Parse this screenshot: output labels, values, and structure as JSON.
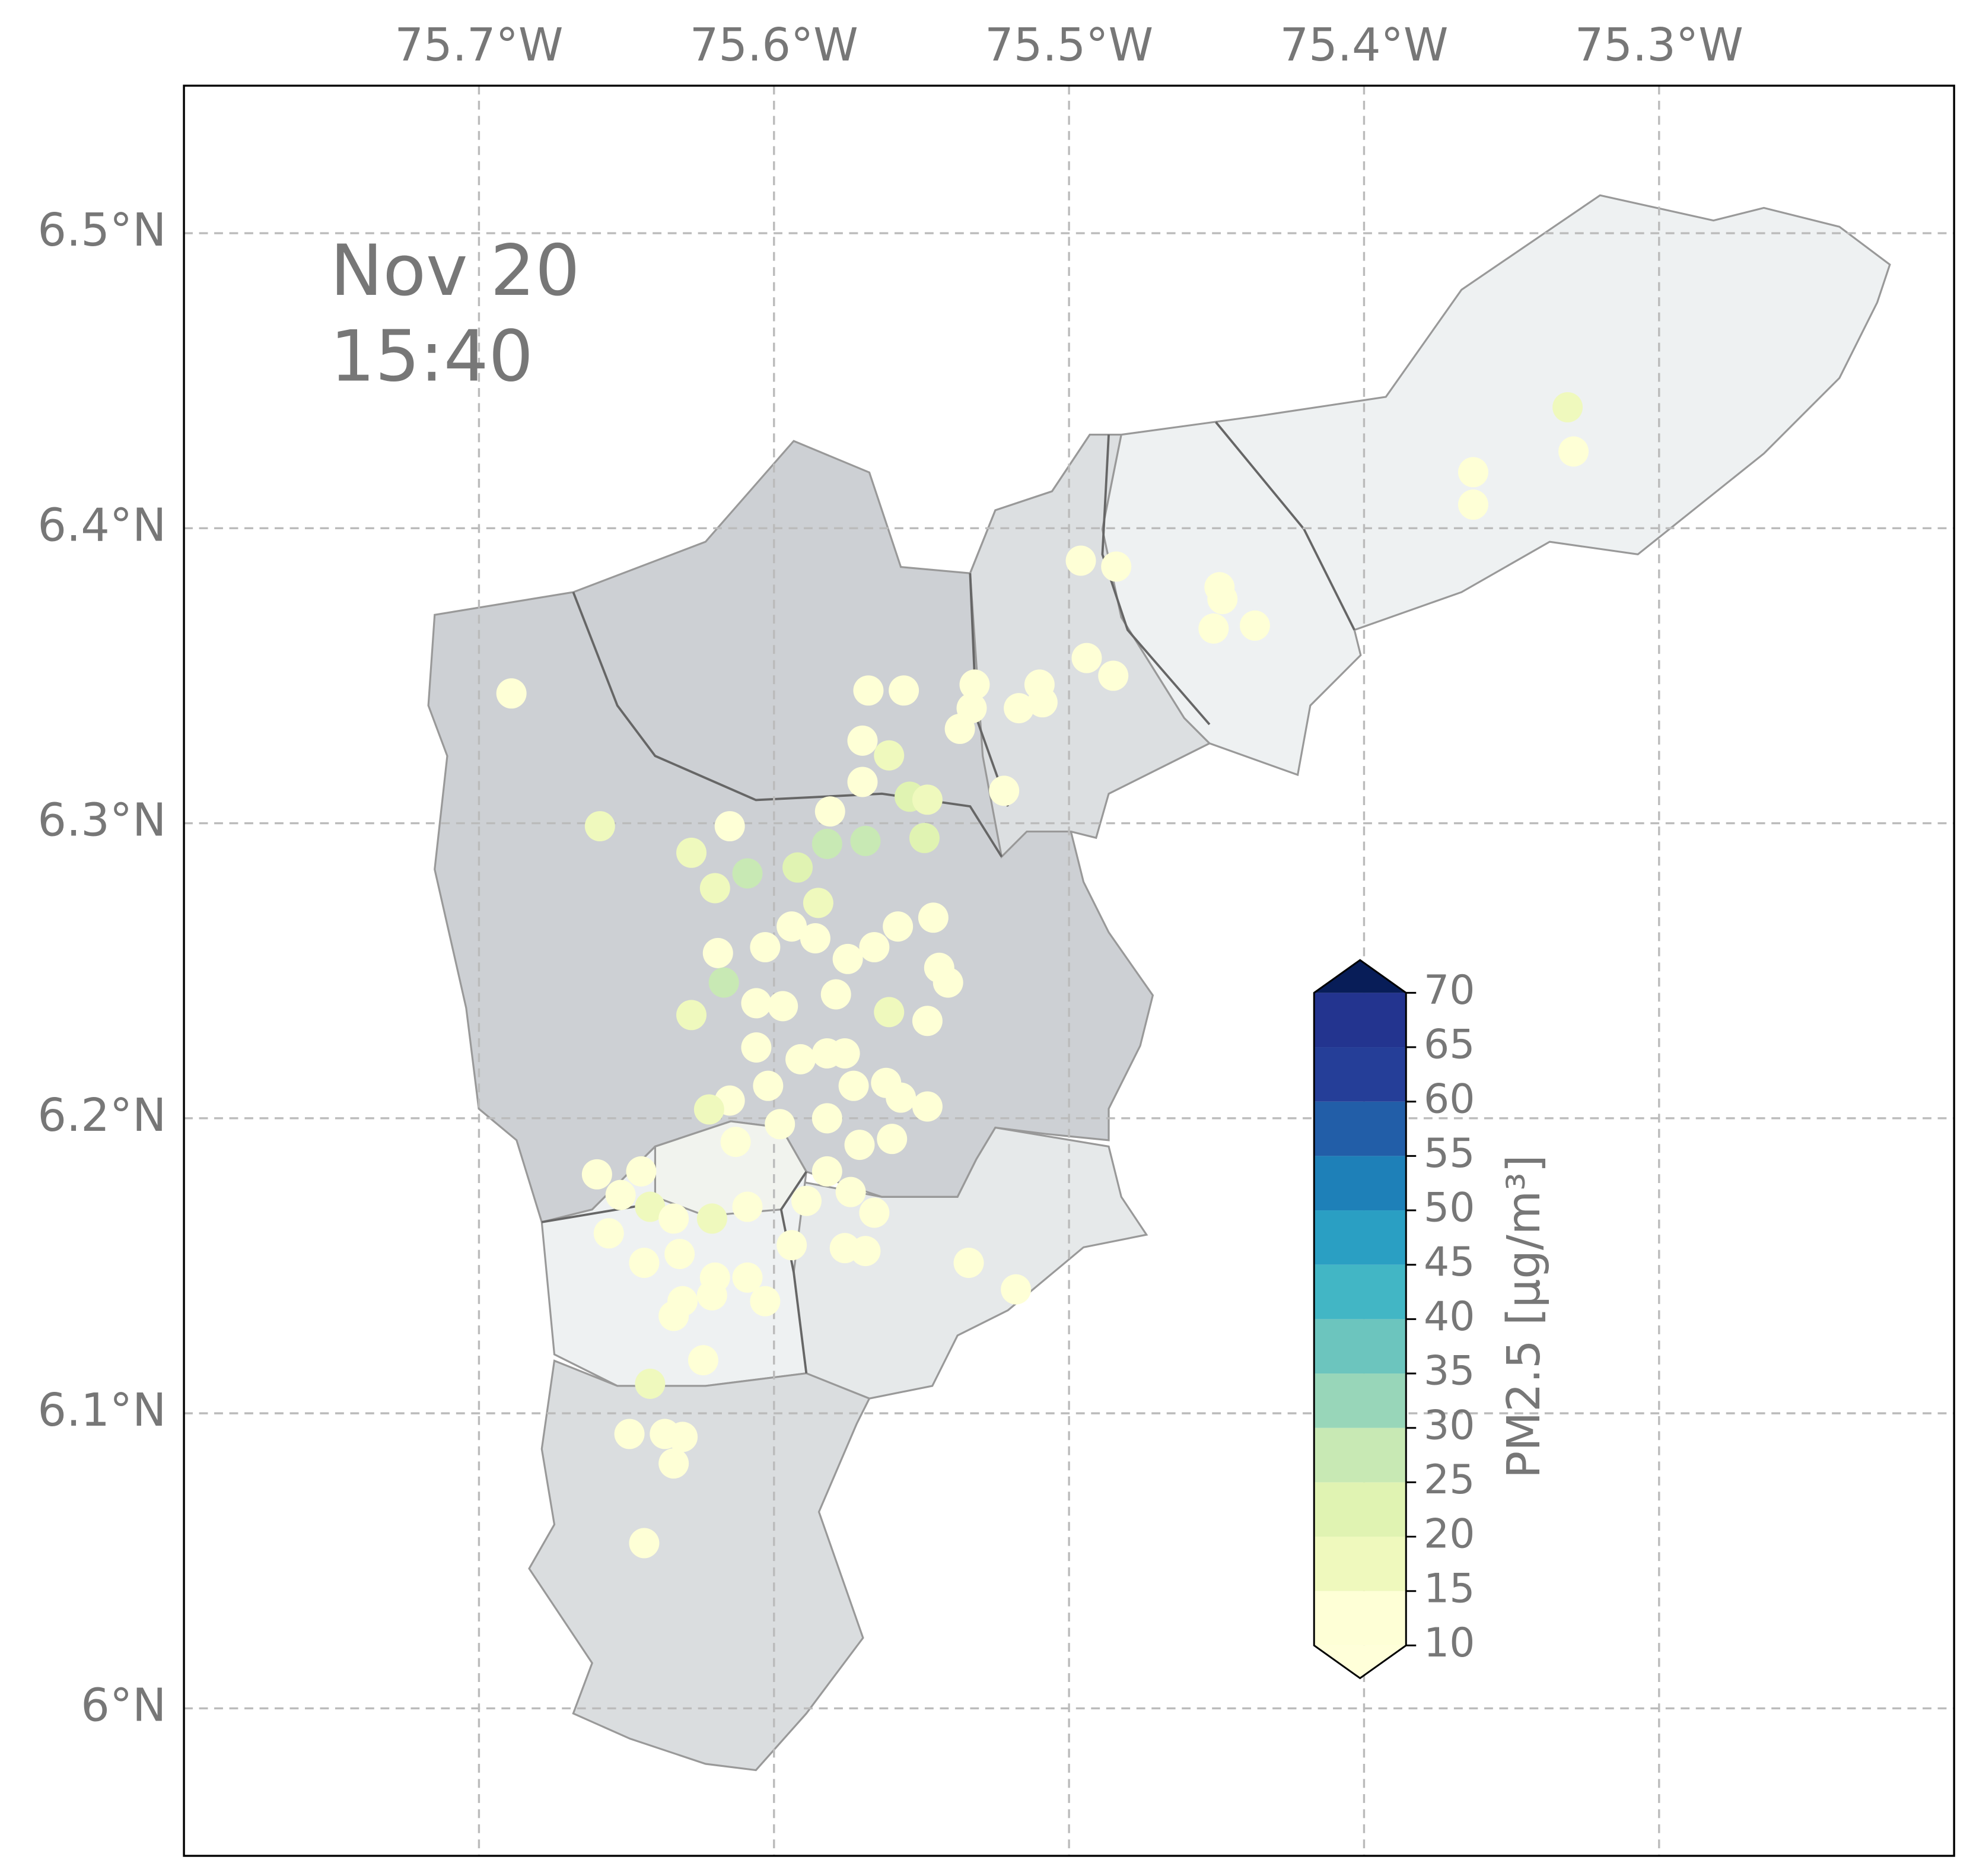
{
  "map": {
    "timestamp": [
      "Nov 20",
      "15:40"
    ],
    "xlim": [
      -75.8,
      -75.2
    ],
    "ylim": [
      5.95,
      6.55
    ],
    "xticks": [
      {
        "value": -75.7,
        "label": "75.7°W"
      },
      {
        "value": -75.6,
        "label": "75.6°W"
      },
      {
        "value": -75.5,
        "label": "75.5°W"
      },
      {
        "value": -75.4,
        "label": "75.4°W"
      },
      {
        "value": -75.3,
        "label": "75.3°W"
      }
    ],
    "yticks": [
      {
        "value": 6.5,
        "label": "6.5°N"
      },
      {
        "value": 6.4,
        "label": "6.4°N"
      },
      {
        "value": 6.3,
        "label": "6.3°N"
      },
      {
        "value": 6.2,
        "label": "6.2°N"
      },
      {
        "value": 6.1,
        "label": "6.1°N"
      },
      {
        "value": 6.0,
        "label": "6°N"
      }
    ],
    "grid": true,
    "colorbar": {
      "label": "PM2.5 [μg/m³]",
      "ticks": [
        10,
        15,
        20,
        25,
        30,
        35,
        40,
        45,
        50,
        55,
        60,
        65,
        70
      ],
      "colors": [
        "#feffd6",
        "#eff9bd",
        "#e0f3b2",
        "#c8e9b4",
        "#98d6b9",
        "#6cc5be",
        "#42b6c5",
        "#2a9fc3",
        "#1e80b8",
        "#225ea8",
        "#253e98",
        "#23348f"
      ],
      "under_color": "#ffffd9",
      "over_color": "#081d58"
    },
    "stations": {
      "lon": [
        -75.689,
        -75.659,
        -75.628,
        -75.615,
        -75.609,
        -75.62,
        -75.592,
        -75.619,
        -75.617,
        -75.628,
        -75.603,
        -75.594,
        -75.585,
        -75.581,
        -75.57,
        -75.568,
        -75.556,
        -75.561,
        -75.57,
        -75.554,
        -75.548,
        -75.549,
        -75.569,
        -75.582,
        -75.546,
        -75.558,
        -75.566,
        -75.575,
        -75.586,
        -75.579,
        -75.561,
        -75.548,
        -75.544,
        -75.541,
        -75.606,
        -75.597,
        -75.606,
        -75.591,
        -75.582,
        -75.576,
        -75.602,
        -75.615,
        -75.622,
        -75.573,
        -75.562,
        -75.557,
        -75.548,
        -75.582,
        -75.56,
        -75.571,
        -75.613,
        -75.598,
        -75.582,
        -75.574,
        -75.589,
        -75.566,
        -75.576,
        -75.594,
        -75.569,
        -75.609,
        -75.66,
        -75.652,
        -75.645,
        -75.642,
        -75.634,
        -75.621,
        -75.656,
        -75.644,
        -75.632,
        -75.62,
        -75.609,
        -75.603,
        -75.621,
        -75.631,
        -75.634,
        -75.624,
        -75.642,
        -75.649,
        -75.637,
        -75.631,
        -75.634,
        -75.644,
        -75.534,
        -75.518,
        -75.532,
        -75.533,
        -75.537,
        -75.522,
        -75.517,
        -75.51,
        -75.509,
        -75.496,
        -75.484,
        -75.494,
        -75.485,
        -75.449,
        -75.448,
        -75.451,
        -75.437,
        -75.363,
        -75.363,
        -75.331,
        -75.329
      ],
      "lat": [
        6.344,
        6.299,
        6.29,
        6.299,
        6.283,
        6.278,
        6.285,
        6.256,
        6.246,
        6.235,
        6.258,
        6.265,
        6.273,
        6.304,
        6.328,
        6.345,
        6.345,
        6.323,
        6.314,
        6.309,
        6.308,
        6.295,
        6.294,
        6.293,
        6.268,
        6.265,
        6.258,
        6.254,
        6.261,
        6.242,
        6.236,
        6.233,
        6.251,
        6.246,
        6.239,
        6.238,
        6.224,
        6.22,
        6.222,
        6.222,
        6.211,
        6.206,
        6.203,
        6.211,
        6.212,
        6.207,
        6.204,
        6.2,
        6.193,
        6.191,
        6.192,
        6.198,
        6.182,
        6.175,
        6.172,
        6.168,
        6.156,
        6.157,
        6.155,
        6.17,
        6.181,
        6.174,
        6.182,
        6.17,
        6.166,
        6.166,
        6.161,
        6.151,
        6.154,
        6.146,
        6.146,
        6.138,
        6.14,
        6.138,
        6.133,
        6.118,
        6.11,
        6.093,
        6.093,
        6.092,
        6.083,
        6.056,
        6.151,
        6.142,
        6.347,
        6.339,
        6.332,
        6.311,
        6.339,
        6.347,
        6.341,
        6.389,
        6.387,
        6.356,
        6.35,
        6.38,
        6.376,
        6.366,
        6.367,
        6.419,
        6.408,
        6.441,
        6.426
      ],
      "values": [
        12,
        15,
        18,
        13,
        25,
        15,
        22,
        12,
        28,
        18,
        12,
        12,
        15,
        13,
        13,
        12,
        12,
        18,
        12,
        20,
        18,
        20,
        25,
        28,
        12,
        12,
        14,
        12,
        14,
        12,
        16,
        13,
        12,
        13,
        14,
        12,
        12,
        12,
        12,
        14,
        12,
        12,
        16,
        12,
        12,
        12,
        12,
        12,
        12,
        12,
        12,
        12,
        12,
        12,
        13,
        12,
        12,
        12,
        12,
        13,
        13,
        12,
        13,
        16,
        14,
        16,
        12,
        12,
        14,
        12,
        12,
        12,
        12,
        12,
        12,
        13,
        15,
        12,
        12,
        12,
        12,
        12,
        12,
        12,
        12,
        12,
        13,
        12,
        12,
        12,
        12,
        12,
        12,
        12,
        12,
        12,
        12,
        12,
        12,
        14,
        12,
        18,
        14
      ]
    }
  }
}
